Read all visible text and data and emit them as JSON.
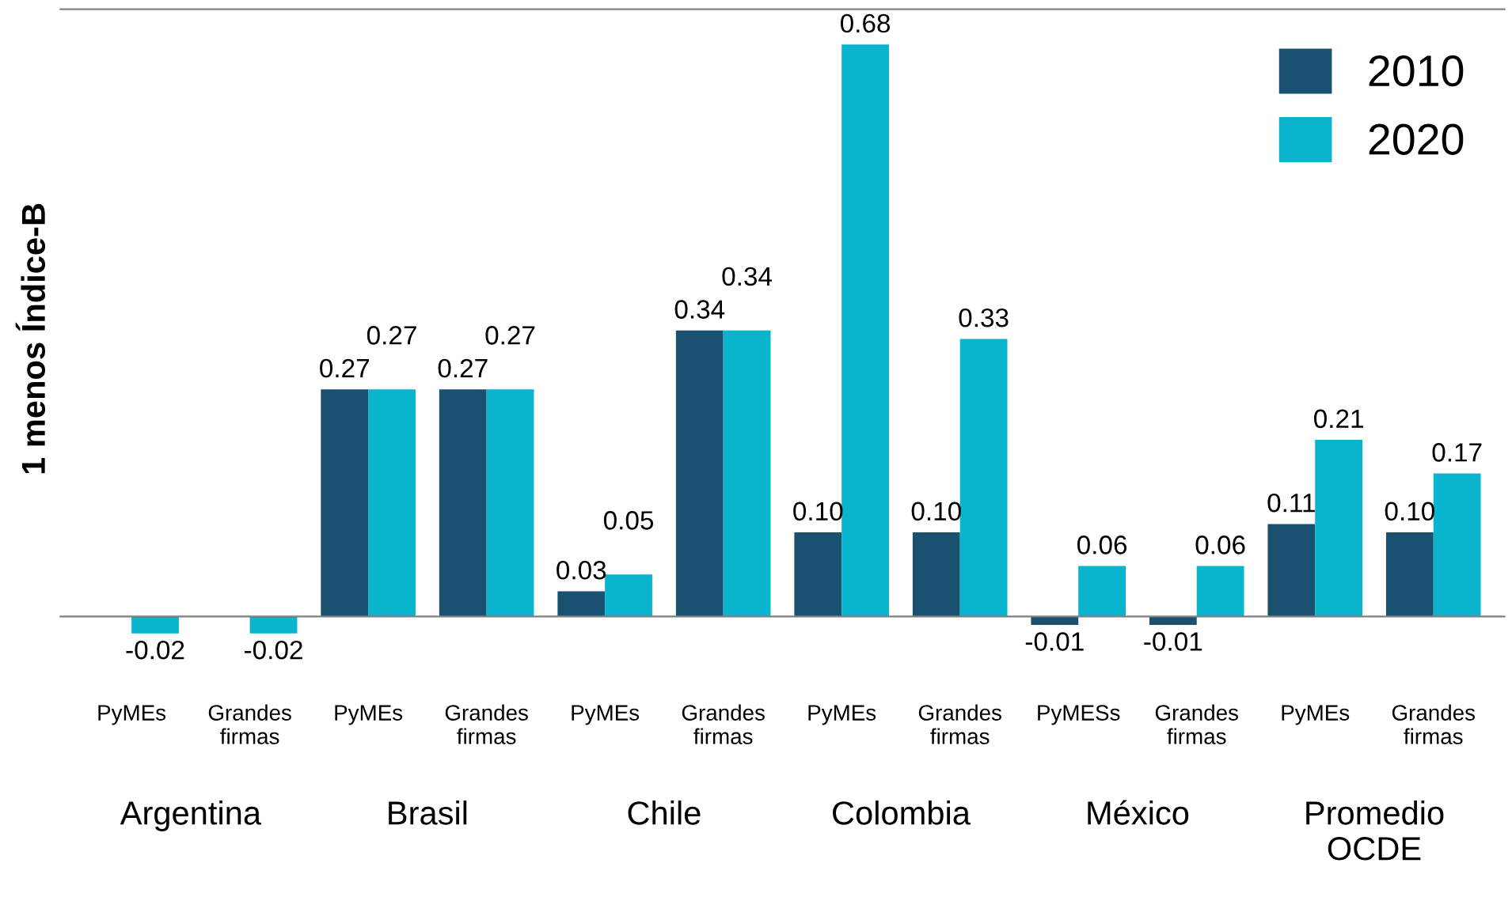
{
  "chart_data": {
    "type": "bar",
    "ylabel": "1 menos Índice-B",
    "categories": [
      "PyMEs",
      "Grandes\nfirmas",
      "PyMEs",
      "Grandes\nfirmas",
      "PyMEs",
      "Grandes\nfirmas",
      "PyMEs",
      "Grandes\nfirmas",
      "PyMESs",
      "Grandes\nfirmas",
      "PyMEs",
      "Grandes\nfirmas"
    ],
    "series": [
      {
        "name": "2010",
        "color": "#1a5070",
        "values": [
          null,
          null,
          0.27,
          0.27,
          0.03,
          0.34,
          0.1,
          0.1,
          -0.01,
          -0.01,
          0.11,
          0.1
        ],
        "value_labels": [
          null,
          null,
          "0.27",
          "0.27",
          "0.03",
          "0.34",
          "0.10",
          "0.10",
          "-0.01",
          "-0.01",
          "0.11",
          "0.10"
        ]
      },
      {
        "name": "2020",
        "color": "#0ab4cc",
        "values": [
          -0.02,
          -0.02,
          0.27,
          0.27,
          0.05,
          0.34,
          0.68,
          0.33,
          0.06,
          0.06,
          0.21,
          0.17
        ],
        "value_labels": [
          "-0.02",
          "-0.02",
          "0.27",
          "0.27",
          "0.05",
          "0.34",
          "0.68",
          "0.33",
          "0.06",
          "0.06",
          "0.21",
          "0.17"
        ]
      }
    ],
    "annotations": [
      "Argentina",
      "Brasil",
      "Chile",
      "Colombia",
      "México",
      "Promedio\nOCDE"
    ],
    "tick_labels": "x",
    "legend": "top right",
    "grid": false
  }
}
